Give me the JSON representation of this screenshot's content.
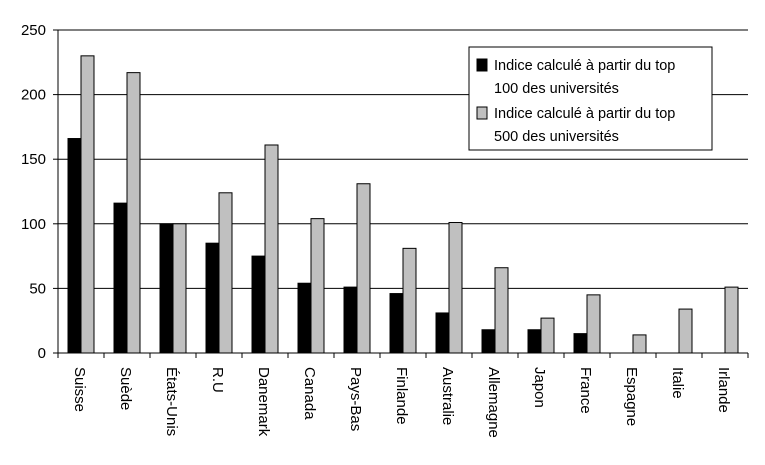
{
  "chart_data": {
    "type": "bar",
    "title": "",
    "xlabel": "",
    "ylabel": "",
    "ylim": [
      0,
      250
    ],
    "yticks": [
      0,
      50,
      100,
      150,
      200,
      250
    ],
    "grid": "horizontal",
    "legend_position": "top-right",
    "categories": [
      "Suisse",
      "Suède",
      "États-Unis",
      "R.U",
      "Danemark",
      "Canada",
      "Pays-Bas",
      "Finlande",
      "Australie",
      "Allemagne",
      "Japon",
      "France",
      "Espagne",
      "Italie",
      "Irlande"
    ],
    "series": [
      {
        "name": "Indice calculé à partir du top 100 des universités",
        "legend_lines": [
          "Indice calculé à partir du top",
          "100 des universités"
        ],
        "color": "#000000",
        "values": [
          166,
          116,
          100,
          85,
          75,
          54,
          51,
          46,
          31,
          18,
          18,
          15,
          0,
          0,
          0
        ]
      },
      {
        "name": "Indice calculé à partir du top 500 des universités",
        "legend_lines": [
          "Indice calculé à partir du top",
          "500 des universités"
        ],
        "color": "#c0c0c0",
        "values": [
          230,
          217,
          100,
          124,
          161,
          104,
          131,
          81,
          101,
          66,
          27,
          45,
          14,
          34,
          51
        ]
      }
    ]
  }
}
